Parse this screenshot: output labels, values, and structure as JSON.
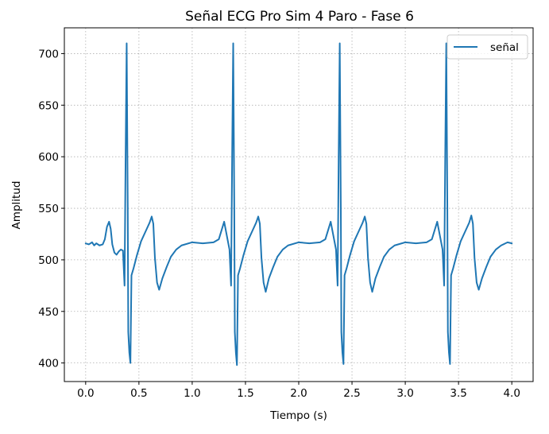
{
  "chart_data": {
    "type": "line",
    "title": "Señal ECG Pro Sim 4 Paro - Fase 6",
    "xlabel": "Tiempo (s)",
    "ylabel": "Amplitud",
    "xlim": [
      -0.2,
      4.2
    ],
    "ylim": [
      382,
      725
    ],
    "xticks": [
      0.0,
      0.5,
      1.0,
      1.5,
      2.0,
      2.5,
      3.0,
      3.5,
      4.0
    ],
    "xtick_labels": [
      "0.0",
      "0.5",
      "1.0",
      "1.5",
      "2.0",
      "2.5",
      "3.0",
      "3.5",
      "4.0"
    ],
    "yticks": [
      400,
      450,
      500,
      550,
      600,
      650,
      700
    ],
    "ytick_labels": [
      "400",
      "450",
      "500",
      "550",
      "600",
      "650",
      "700"
    ],
    "grid": true,
    "legend_position": "top-right",
    "series": [
      {
        "name": "señal",
        "color": "#1f77b4",
        "x": [
          0.0,
          0.03,
          0.06,
          0.08,
          0.1,
          0.13,
          0.16,
          0.18,
          0.2,
          0.22,
          0.235,
          0.25,
          0.27,
          0.29,
          0.31,
          0.33,
          0.35,
          0.365,
          0.375,
          0.385,
          0.395,
          0.4,
          0.41,
          0.42,
          0.43,
          0.45,
          0.48,
          0.52,
          0.56,
          0.6,
          0.62,
          0.635,
          0.65,
          0.67,
          0.69,
          0.72,
          0.76,
          0.8,
          0.85,
          0.9,
          1.0,
          1.1,
          1.2,
          1.25,
          1.3,
          1.35,
          1.365,
          1.375,
          1.385,
          1.395,
          1.4,
          1.41,
          1.42,
          1.43,
          1.45,
          1.48,
          1.52,
          1.56,
          1.6,
          1.62,
          1.635,
          1.65,
          1.67,
          1.69,
          1.72,
          1.76,
          1.8,
          1.85,
          1.9,
          2.0,
          2.1,
          2.2,
          2.25,
          2.3,
          2.35,
          2.365,
          2.375,
          2.385,
          2.395,
          2.4,
          2.41,
          2.42,
          2.43,
          2.45,
          2.48,
          2.52,
          2.56,
          2.6,
          2.62,
          2.635,
          2.65,
          2.67,
          2.69,
          2.72,
          2.76,
          2.8,
          2.85,
          2.9,
          3.0,
          3.1,
          3.2,
          3.25,
          3.3,
          3.35,
          3.365,
          3.375,
          3.385,
          3.395,
          3.4,
          3.41,
          3.42,
          3.43,
          3.45,
          3.48,
          3.52,
          3.56,
          3.6,
          3.62,
          3.635,
          3.65,
          3.67,
          3.69,
          3.72,
          3.76,
          3.8,
          3.85,
          3.9,
          3.96,
          4.0
        ],
        "y": [
          516,
          515,
          517,
          514,
          516,
          514,
          515,
          520,
          532,
          537,
          530,
          515,
          507,
          505,
          508,
          510,
          509,
          475,
          600,
          710,
          550,
          430,
          410,
          400,
          485,
          492,
          504,
          518,
          527,
          536,
          542,
          535,
          502,
          478,
          471,
          482,
          493,
          503,
          510,
          514,
          517,
          516,
          517,
          520,
          537,
          510,
          475,
          600,
          710,
          550,
          430,
          410,
          398,
          485,
          492,
          504,
          518,
          527,
          536,
          542,
          535,
          502,
          478,
          469,
          482,
          493,
          503,
          510,
          514,
          517,
          516,
          517,
          520,
          537,
          510,
          475,
          600,
          710,
          550,
          430,
          410,
          399,
          485,
          492,
          504,
          518,
          527,
          536,
          542,
          535,
          502,
          478,
          469,
          482,
          493,
          503,
          510,
          514,
          517,
          516,
          517,
          520,
          537,
          510,
          475,
          600,
          710,
          550,
          430,
          410,
          399,
          485,
          492,
          504,
          518,
          527,
          536,
          543,
          535,
          502,
          478,
          471,
          482,
          493,
          503,
          510,
          514,
          517,
          516
        ]
      }
    ]
  }
}
